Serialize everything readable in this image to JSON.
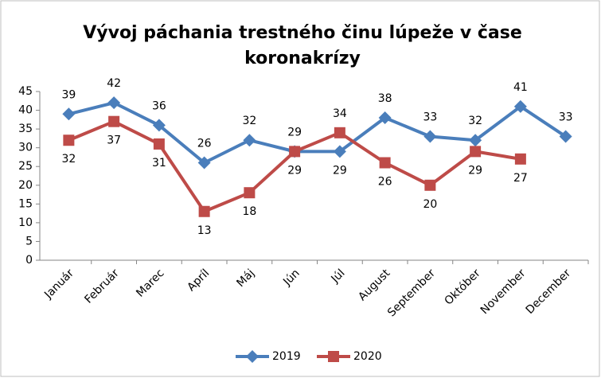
{
  "chart_data": {
    "type": "line",
    "title": [
      "Vývoj páchania trestného činu lúpeže v čase",
      "koronakrízy"
    ],
    "categories": [
      "Január",
      "Február",
      "Marec",
      "Apríl",
      "Máj",
      "Jún",
      "Júl",
      "August",
      "September",
      "Október",
      "November",
      "December"
    ],
    "series": [
      {
        "name": "2019",
        "color": "#4a7ebb",
        "marker": "diamond",
        "values": [
          39,
          42,
          36,
          26,
          32,
          29,
          29,
          38,
          33,
          32,
          41,
          33
        ]
      },
      {
        "name": "2020",
        "color": "#be4b48",
        "marker": "square",
        "values": [
          32,
          37,
          31,
          13,
          18,
          29,
          34,
          26,
          20,
          29,
          27,
          null
        ]
      }
    ],
    "ylim": [
      0,
      45
    ],
    "yticks": [
      0,
      5,
      10,
      15,
      20,
      25,
      30,
      35,
      40,
      45
    ],
    "grid": false,
    "legend": "bottom"
  }
}
